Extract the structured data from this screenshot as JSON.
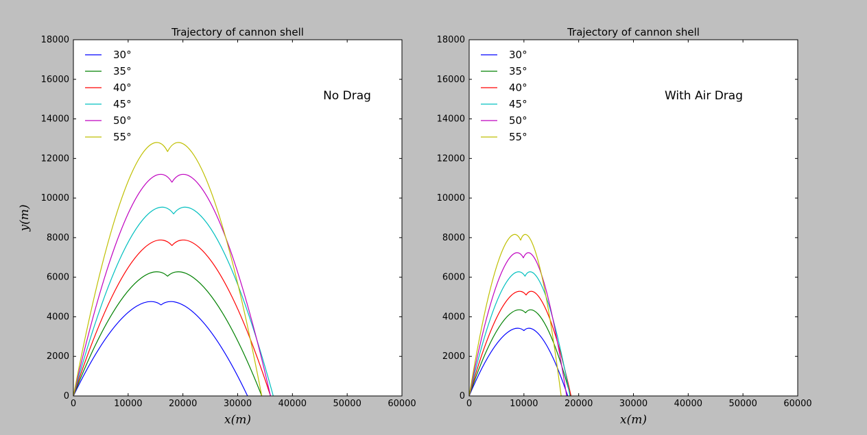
{
  "chart_data": [
    {
      "type": "line",
      "title": "Trajectory of cannon shell",
      "annotation": "No Drag",
      "xlabel": "x(m)",
      "ylabel": "y(m)",
      "xlim": [
        0,
        60000
      ],
      "ylim": [
        0,
        18000
      ],
      "xticks": [
        "0",
        "10000",
        "20000",
        "30000",
        "40000",
        "50000",
        "60000"
      ],
      "yticks": [
        "0",
        "2000",
        "4000",
        "6000",
        "8000",
        "10000",
        "12000",
        "14000",
        "16000",
        "18000"
      ],
      "legend_position": "upper-left",
      "grid": false,
      "series": [
        {
          "name": "30°",
          "color": "#0000ff",
          "range_x": 31800,
          "peak_x": 16000,
          "peak_y": 4600
        },
        {
          "name": "35°",
          "color": "#008000",
          "range_x": 34400,
          "peak_x": 17200,
          "peak_y": 6050
        },
        {
          "name": "40°",
          "color": "#ff0000",
          "range_x": 36000,
          "peak_x": 18000,
          "peak_y": 7600
        },
        {
          "name": "45°",
          "color": "#00bfbf",
          "range_x": 36500,
          "peak_x": 18300,
          "peak_y": 9200
        },
        {
          "name": "50°",
          "color": "#bf00bf",
          "range_x": 36000,
          "peak_x": 18000,
          "peak_y": 10800
        },
        {
          "name": "55°",
          "color": "#bfbf00",
          "range_x": 34400,
          "peak_x": 17200,
          "peak_y": 12350
        }
      ]
    },
    {
      "type": "line",
      "title": "Trajectory of cannon shell",
      "annotation": "With Air Drag",
      "xlabel": "x(m)",
      "ylabel": "",
      "xlim": [
        0,
        60000
      ],
      "ylim": [
        0,
        18000
      ],
      "xticks": [
        "0",
        "10000",
        "20000",
        "30000",
        "40000",
        "50000",
        "60000"
      ],
      "yticks": [
        "0",
        "2000",
        "4000",
        "6000",
        "8000",
        "10000",
        "12000",
        "14000",
        "16000",
        "18000"
      ],
      "legend_position": "upper-left",
      "grid": false,
      "series": [
        {
          "name": "30°",
          "color": "#0000ff",
          "range_x": 18000,
          "peak_x": 10000,
          "peak_y": 3300
        },
        {
          "name": "35°",
          "color": "#008000",
          "range_x": 18500,
          "peak_x": 10300,
          "peak_y": 4200
        },
        {
          "name": "40°",
          "color": "#ff0000",
          "range_x": 18600,
          "peak_x": 10400,
          "peak_y": 5100
        },
        {
          "name": "45°",
          "color": "#00bfbf",
          "range_x": 18400,
          "peak_x": 10200,
          "peak_y": 6050
        },
        {
          "name": "50°",
          "color": "#bf00bf",
          "range_x": 17800,
          "peak_x": 9900,
          "peak_y": 6980
        },
        {
          "name": "55°",
          "color": "#bfbf00",
          "range_x": 16800,
          "peak_x": 9400,
          "peak_y": 7870
        }
      ]
    }
  ]
}
